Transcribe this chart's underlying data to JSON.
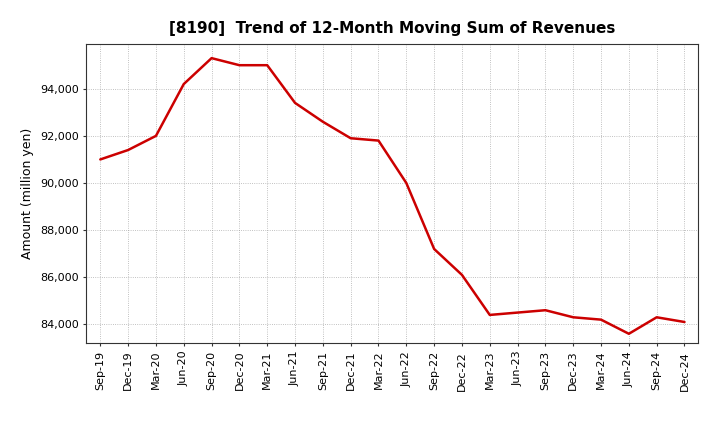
{
  "title": "[8190]  Trend of 12-Month Moving Sum of Revenues",
  "ylabel": "Amount (million yen)",
  "background_color": "#ffffff",
  "grid_color": "#999999",
  "line_color": "#cc0000",
  "title_fontsize": 11,
  "label_fontsize": 9,
  "tick_fontsize": 8,
  "labels": [
    "Sep-19",
    "Dec-19",
    "Mar-20",
    "Jun-20",
    "Sep-20",
    "Dec-20",
    "Mar-21",
    "Jun-21",
    "Sep-21",
    "Dec-21",
    "Mar-22",
    "Jun-22",
    "Sep-22",
    "Dec-22",
    "Mar-23",
    "Jun-23",
    "Sep-23",
    "Dec-23",
    "Mar-24",
    "Jun-24",
    "Sep-24",
    "Dec-24"
  ],
  "values": [
    91000,
    91400,
    92000,
    94200,
    95300,
    95000,
    95000,
    93400,
    92600,
    91900,
    91800,
    90000,
    87200,
    86100,
    84400,
    84500,
    84600,
    84300,
    84200,
    83600,
    84300,
    84100
  ],
  "ylim": [
    83200,
    95900
  ],
  "yticks": [
    84000,
    86000,
    88000,
    90000,
    92000,
    94000
  ]
}
